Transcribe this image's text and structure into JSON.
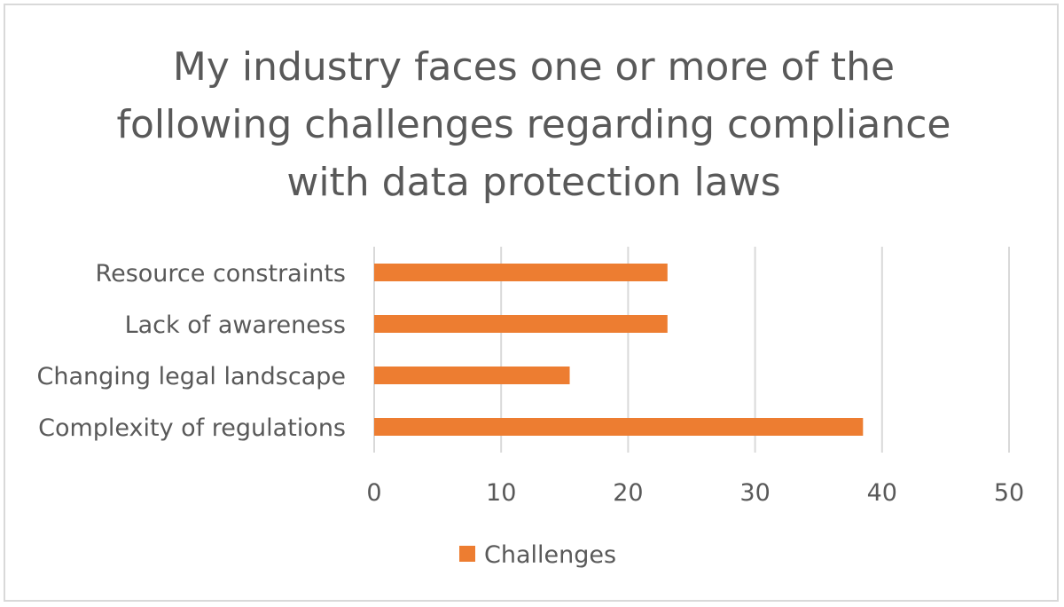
{
  "chart_data": {
    "type": "bar",
    "orientation": "horizontal",
    "title_lines": [
      "My industry faces one or more of the",
      "following challenges regarding compliance",
      "with data protection laws"
    ],
    "categories": [
      "Resource constraints",
      "Lack of awareness",
      "Changing legal landscape",
      "Complexity of regulations"
    ],
    "series": [
      {
        "name": "Challenges",
        "values": [
          23.1,
          23.1,
          15.4,
          38.5
        ],
        "color": "#ed7d31"
      }
    ],
    "xlim": [
      0,
      50
    ],
    "xticks": [
      0,
      10,
      20,
      30,
      40,
      50
    ],
    "xlabel": "",
    "ylabel": "",
    "grid": "vertical",
    "legend_position": "bottom"
  },
  "colors": {
    "bar": "#ed7d31",
    "grid": "#d9d9d9",
    "text": "#595959",
    "border": "#d9d9d9"
  }
}
